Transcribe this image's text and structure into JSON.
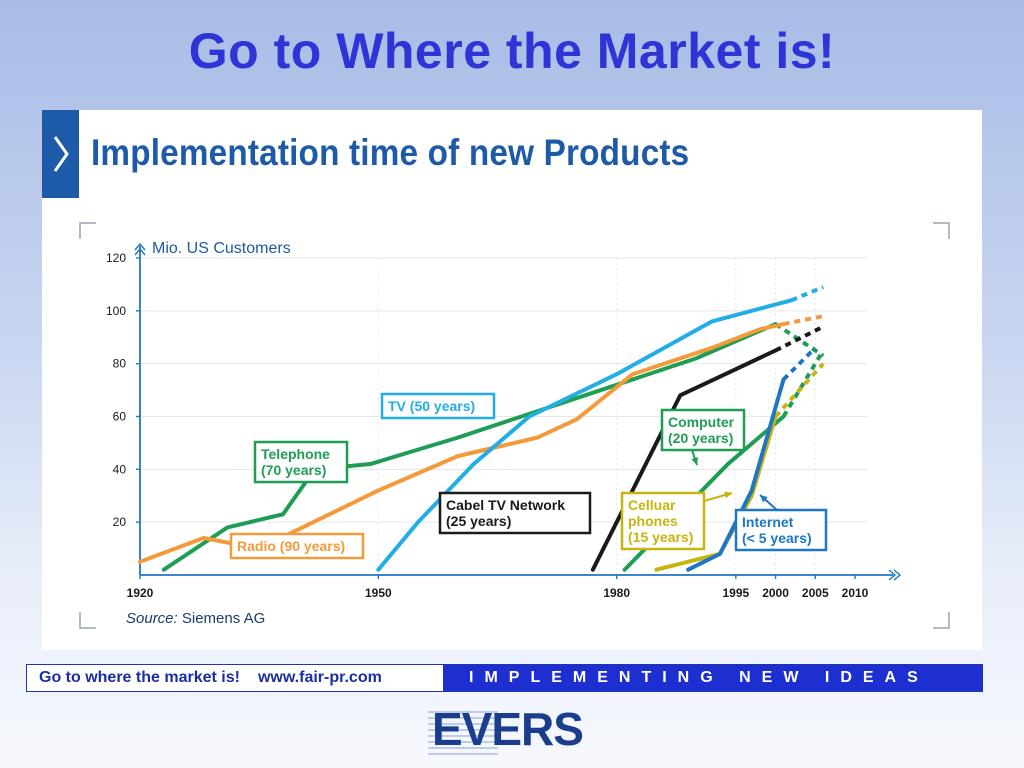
{
  "slide": {
    "title": "Go to Where the Market is!"
  },
  "panel": {
    "heading": "Implementation time of new Products"
  },
  "chart_data": {
    "type": "line",
    "ylabel": "Mio. US Customers",
    "ylim": [
      0,
      120
    ],
    "xlim": [
      1920,
      2010
    ],
    "yticks": [
      20,
      40,
      60,
      80,
      100,
      120
    ],
    "xticks": [
      1920,
      1950,
      1980,
      1995,
      2000,
      2005,
      2010
    ],
    "source_label": "Source:",
    "source_value": "Siemens AG",
    "series": [
      {
        "name": "Telephone",
        "duration": "(70 years)",
        "color": "#1f9d55",
        "values": [
          [
            1923,
            2
          ],
          [
            1931,
            18
          ],
          [
            1938,
            23
          ],
          [
            1942,
            40
          ],
          [
            1949,
            42
          ],
          [
            1960,
            52
          ],
          [
            1970,
            62
          ],
          [
            1980,
            72
          ],
          [
            1990,
            82
          ],
          [
            2000,
            95
          ]
        ],
        "dashed": [
          [
            2000,
            95
          ],
          [
            2005,
            85
          ],
          [
            2006,
            83
          ]
        ]
      },
      {
        "name": "Radio",
        "duration": "(90 years)",
        "color": "#f39a3a",
        "values": [
          [
            1920,
            5
          ],
          [
            1928,
            14
          ],
          [
            1935,
            10
          ],
          [
            1950,
            32
          ],
          [
            1960,
            45
          ],
          [
            1970,
            52
          ],
          [
            1975,
            59
          ],
          [
            1982,
            76
          ],
          [
            1992,
            86
          ],
          [
            1998,
            93
          ],
          [
            2001,
            95
          ]
        ],
        "dashed": [
          [
            2001,
            95
          ],
          [
            2006,
            98
          ]
        ]
      },
      {
        "name": "TV",
        "duration": "(50 years)",
        "color": "#22aee3",
        "values": [
          [
            1950,
            2
          ],
          [
            1955,
            20
          ],
          [
            1962,
            42
          ],
          [
            1969,
            60
          ],
          [
            1980,
            76
          ],
          [
            1992,
            96
          ],
          [
            2002,
            104
          ]
        ],
        "dashed": [
          [
            2002,
            104
          ],
          [
            2006,
            109
          ]
        ]
      },
      {
        "name": "Cabel TV Network",
        "duration": "(25 years)",
        "color": "#1a1a1a",
        "values": [
          [
            1977,
            2
          ],
          [
            1988,
            68
          ],
          [
            2000,
            85
          ]
        ],
        "dashed": [
          [
            2000,
            85
          ],
          [
            2006,
            94
          ]
        ]
      },
      {
        "name": "Computer",
        "duration": "(20 years)",
        "color": "#1f9d55",
        "values": [
          [
            1981,
            2
          ],
          [
            1994,
            42
          ],
          [
            2001,
            60
          ]
        ],
        "dashed": [
          [
            2001,
            60
          ],
          [
            2006,
            85
          ]
        ]
      },
      {
        "name": "Celluar phones",
        "duration": "(15 years)",
        "color": "#c7b50f",
        "values": [
          [
            1985,
            2
          ],
          [
            1993,
            8
          ],
          [
            1997,
            30
          ],
          [
            2000,
            60
          ]
        ],
        "dashed": [
          [
            2000,
            60
          ],
          [
            2006,
            80
          ]
        ]
      },
      {
        "name": "Internet",
        "duration": "(< 5 years)",
        "color": "#1f76c4",
        "values": [
          [
            1989,
            2
          ],
          [
            1993,
            8
          ],
          [
            1997,
            32
          ],
          [
            2001,
            74
          ]
        ],
        "dashed": [
          [
            2001,
            74
          ],
          [
            2005,
            86
          ]
        ]
      }
    ]
  },
  "footer": {
    "left_text": "Go to where the market is!",
    "url": "www.fair-pr.com",
    "tagline": "IMPLEMENTING NEW IDEAS"
  },
  "logo": {
    "text": "EVERS"
  }
}
